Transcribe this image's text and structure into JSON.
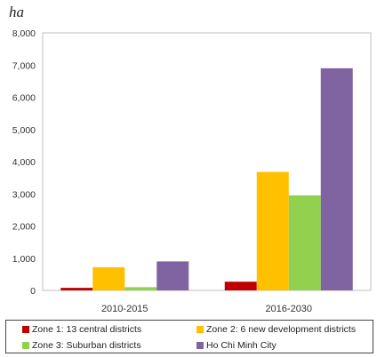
{
  "chart_data": {
    "type": "bar",
    "unit_label": "ha",
    "categories": [
      "2010-2015",
      "2016-2030"
    ],
    "series": [
      {
        "name": "Zone 1: 13 central districts",
        "color": "#c00000",
        "values": [
          80,
          270
        ]
      },
      {
        "name": "Zone 2: 6 new development districts",
        "color": "#ffc000",
        "values": [
          720,
          3680
        ]
      },
      {
        "name": "Zone 3: Suburban districts",
        "color": "#92d050",
        "values": [
          100,
          2950
        ]
      },
      {
        "name": "Ho Chi Minh City",
        "color": "#8064a2",
        "values": [
          900,
          6900
        ]
      }
    ],
    "yticks": [
      "0",
      "1,000",
      "2,000",
      "3,000",
      "4,000",
      "5,000",
      "6,000",
      "7,000",
      "8,000"
    ],
    "ylim": [
      0,
      8000
    ],
    "grid": false,
    "legend_position": "bottom"
  }
}
